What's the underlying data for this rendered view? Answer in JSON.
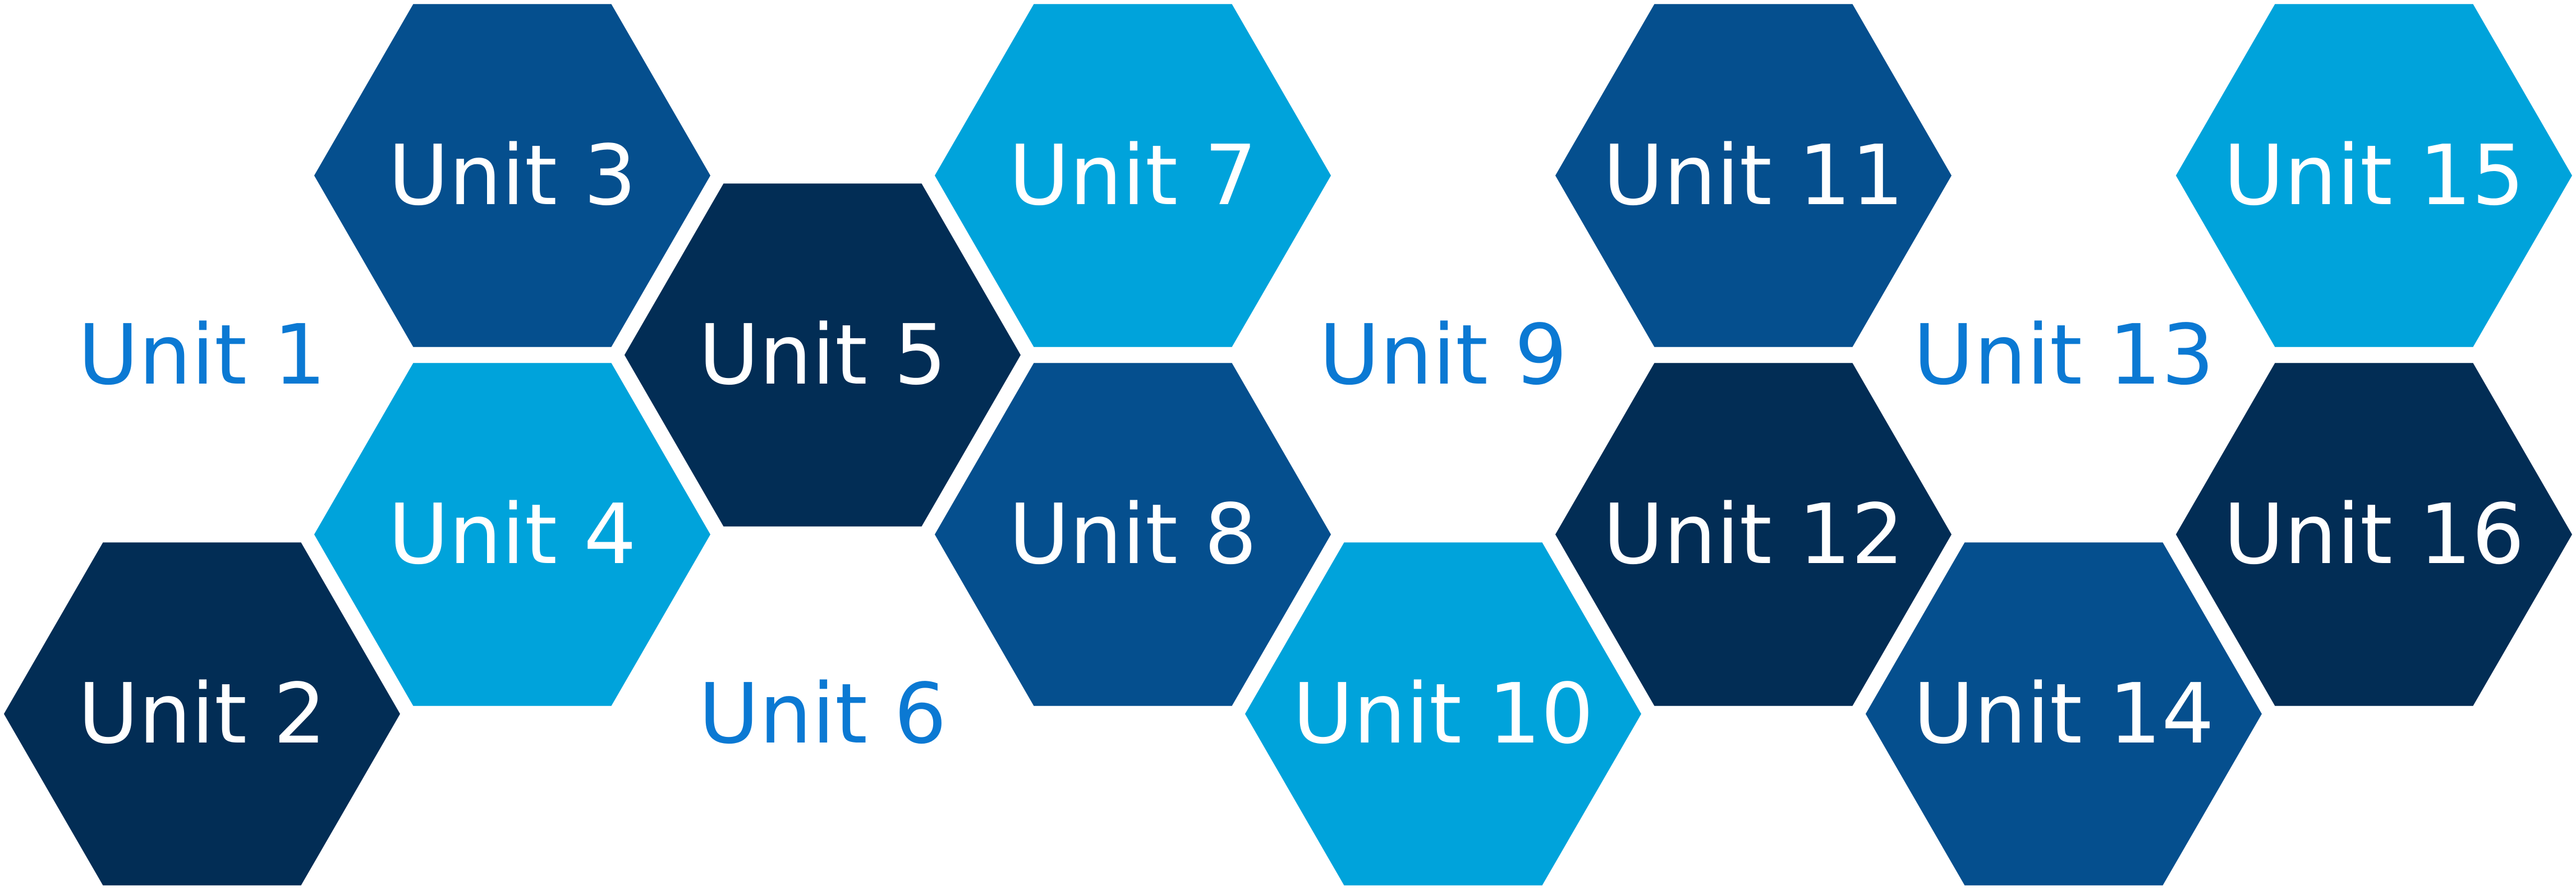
{
  "colors": {
    "light": "#00a3db",
    "mid": "#054f8e",
    "dark": "#022d55",
    "loose_text": "#0b79d3",
    "hex_text": "#ffffff"
  },
  "units": [
    {
      "id": "unit-1",
      "label": "Unit 1",
      "style": "text"
    },
    {
      "id": "unit-2",
      "label": "Unit 2",
      "style": "dark"
    },
    {
      "id": "unit-3",
      "label": "Unit 3",
      "style": "mid"
    },
    {
      "id": "unit-4",
      "label": "Unit 4",
      "style": "light"
    },
    {
      "id": "unit-5",
      "label": "Unit 5",
      "style": "dark"
    },
    {
      "id": "unit-6",
      "label": "Unit 6",
      "style": "text"
    },
    {
      "id": "unit-7",
      "label": "Unit 7",
      "style": "light"
    },
    {
      "id": "unit-8",
      "label": "Unit 8",
      "style": "mid"
    },
    {
      "id": "unit-9",
      "label": "Unit 9",
      "style": "text"
    },
    {
      "id": "unit-10",
      "label": "Unit 10",
      "style": "light"
    },
    {
      "id": "unit-11",
      "label": "Unit 11",
      "style": "mid"
    },
    {
      "id": "unit-12",
      "label": "Unit 12",
      "style": "dark"
    },
    {
      "id": "unit-13",
      "label": "Unit 13",
      "style": "text"
    },
    {
      "id": "unit-14",
      "label": "Unit 14",
      "style": "mid"
    },
    {
      "id": "unit-15",
      "label": "Unit 15",
      "style": "light"
    },
    {
      "id": "unit-16",
      "label": "Unit 16",
      "style": "dark"
    }
  ]
}
